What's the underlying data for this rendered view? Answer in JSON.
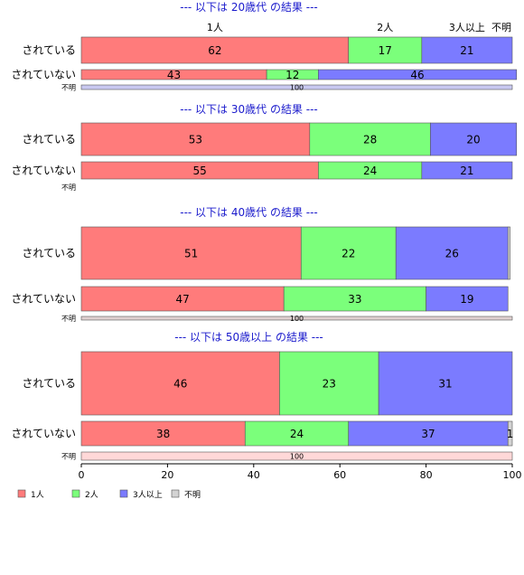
{
  "chart_data": {
    "type": "bar",
    "orientation": "horizontal",
    "stacked": true,
    "xlim": [
      0,
      100
    ],
    "x_ticks": [
      "0",
      "20",
      "40",
      "60",
      "80",
      "100"
    ],
    "legend": [
      {
        "name": "1人",
        "color": "#ff7b7b"
      },
      {
        "name": "2人",
        "color": "#7bff7b"
      },
      {
        "name": "3人以上",
        "color": "#7b7bff"
      },
      {
        "name": "不明",
        "color": "#d3d3d3"
      }
    ],
    "legend_placement": "bottom-left",
    "top_labels": [
      {
        "text": "1人",
        "at": 31
      },
      {
        "text": "2人",
        "at": 70.5
      },
      {
        "text": "3人以上",
        "at": 89.5
      },
      {
        "text": "不明",
        "at": 100
      }
    ],
    "groups": [
      {
        "title": "--- 以下は 20歳代 の結果 ---",
        "rows": [
          {
            "label": "されている",
            "values": [
              62,
              17,
              21,
              0
            ],
            "labels": [
              "62",
              "17",
              "21",
              ""
            ]
          },
          {
            "label": "されていない",
            "values": [
              43,
              12,
              46,
              0
            ],
            "labels": [
              "43",
              "12",
              "46",
              ""
            ]
          },
          {
            "label": "不明",
            "values": [
              0,
              0,
              0,
              100
            ],
            "labels": [
              "",
              "",
              "",
              "100"
            ]
          }
        ]
      },
      {
        "title": "--- 以下は 30歳代 の結果 ---",
        "rows": [
          {
            "label": "されている",
            "values": [
              53,
              28,
              20,
              0
            ],
            "labels": [
              "53",
              "28",
              "20",
              ""
            ]
          },
          {
            "label": "されていない",
            "values": [
              55,
              24,
              21,
              0
            ],
            "labels": [
              "55",
              "24",
              "21",
              ""
            ]
          },
          {
            "label": "不明",
            "values": [
              0,
              0,
              0,
              0
            ],
            "labels": [
              "",
              "",
              "",
              ""
            ]
          }
        ]
      },
      {
        "title": "--- 以下は 40歳代 の結果 ---",
        "rows": [
          {
            "label": "されている",
            "values": [
              51,
              22,
              26,
              0.5
            ],
            "labels": [
              "51",
              "22",
              "26",
              ""
            ]
          },
          {
            "label": "されていない",
            "values": [
              47,
              33,
              19,
              0
            ],
            "labels": [
              "47",
              "33",
              "19",
              ""
            ]
          },
          {
            "label": "不明",
            "values": [
              0,
              0,
              0,
              100
            ],
            "labels": [
              "",
              "",
              "",
              "100"
            ]
          }
        ]
      },
      {
        "title": "--- 以下は 50歳以上 の結果 ---",
        "rows": [
          {
            "label": "されている",
            "values": [
              46,
              23,
              31,
              0
            ],
            "labels": [
              "46",
              "23",
              "31",
              ""
            ]
          },
          {
            "label": "されていない",
            "values": [
              38,
              24,
              37,
              1
            ],
            "labels": [
              "38",
              "24",
              "37",
              "1"
            ]
          },
          {
            "label": "不明",
            "values": [
              0,
              0,
              0,
              100
            ],
            "labels": [
              "",
              "",
              "",
              "100"
            ]
          }
        ]
      }
    ],
    "colors": {
      "title": "#1a1acc",
      "unknown_fill_20s": "#c8c8f0",
      "unknown_fill_40s": "#e0d0d0",
      "unknown_fill_50s": "#ffd8d8",
      "bar_border": "#555555"
    }
  }
}
